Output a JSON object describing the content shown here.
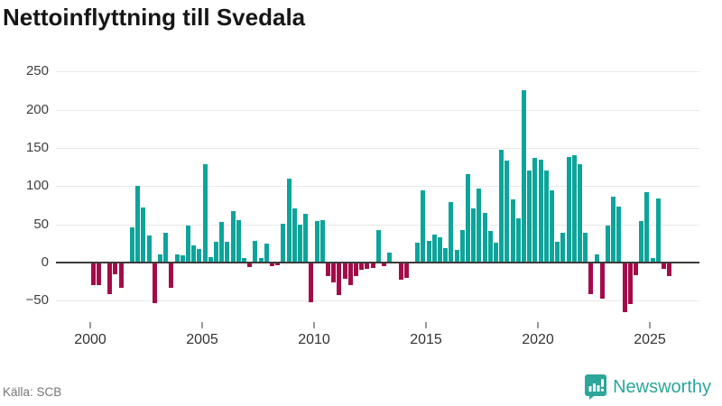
{
  "header": {
    "title": "Nettoinflyttning till Svedala"
  },
  "footer": {
    "source_label": "Källa: SCB",
    "brand_name": "Newsworthy",
    "brand_color": "#2da69b"
  },
  "chart_data": {
    "type": "bar",
    "title": "Nettoinflyttning till Svedala",
    "xlabel": "",
    "ylabel": "",
    "start_year": 2000,
    "periods_per_year": 4,
    "x_ticks": [
      2000,
      2005,
      2010,
      2015,
      2020,
      2025
    ],
    "y_ticks": [
      250,
      200,
      150,
      100,
      50,
      0,
      -50
    ],
    "ylim": [
      -80,
      262
    ],
    "grid": true,
    "legend": false,
    "colors": {
      "positive": "#0da49a",
      "negative": "#a30c49"
    },
    "values": [
      -29,
      -30,
      0,
      -41,
      -15,
      -33,
      0,
      46,
      100,
      72,
      35,
      -53,
      11,
      39,
      -33,
      11,
      9,
      49,
      22,
      18,
      129,
      7,
      27,
      53,
      27,
      67,
      56,
      6,
      -6,
      28,
      6,
      25,
      -5,
      -4,
      51,
      110,
      71,
      50,
      64,
      -52,
      54,
      56,
      -18,
      -26,
      -42,
      -21,
      -29,
      -18,
      -10,
      -8,
      -7,
      42,
      -5,
      13,
      0,
      -23,
      -20,
      0,
      26,
      94,
      28,
      37,
      33,
      19,
      79,
      17,
      42,
      116,
      71,
      97,
      65,
      41,
      26,
      148,
      133,
      83,
      58,
      226,
      120,
      137,
      135,
      120,
      95,
      27,
      39,
      138,
      141,
      129,
      39,
      -41,
      11,
      -47,
      48,
      86,
      73,
      -65,
      -54,
      -16,
      54,
      92,
      6,
      84,
      -8,
      -18
    ]
  }
}
